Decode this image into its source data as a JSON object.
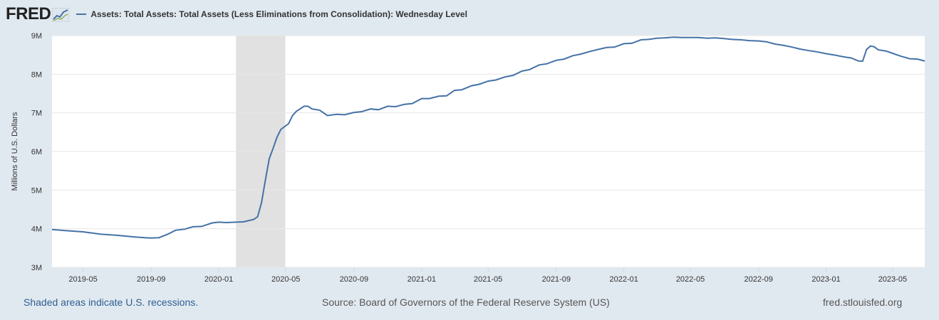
{
  "header": {
    "logo_text": "FRED",
    "legend_label": "Assets: Total Assets: Total Assets (Less Eliminations from Consolidation): Wednesday Level"
  },
  "footer": {
    "recession_note": "Shaded areas indicate U.S. recessions.",
    "source": "Source: Board of Governors of the Federal Reserve System (US)",
    "url": "fred.stlouisfed.org"
  },
  "colors": {
    "line": "#4572a7",
    "recession": "#e1e1e1",
    "background": "#e1e9f0",
    "plot": "#ffffff",
    "grid": "#e6e6e6"
  },
  "chart_data": {
    "type": "line",
    "title": "",
    "xlabel": "",
    "ylabel": "Millions of U.S. Dollars",
    "x_range": [
      "2019-03-06",
      "2023-06-28"
    ],
    "ylim": [
      3000000,
      9000000
    ],
    "grid": true,
    "legend_position": "top-left",
    "y_ticks": [
      {
        "value": 3000000,
        "label": "3M"
      },
      {
        "value": 4000000,
        "label": "4M"
      },
      {
        "value": 5000000,
        "label": "5M"
      },
      {
        "value": 6000000,
        "label": "6M"
      },
      {
        "value": 7000000,
        "label": "7M"
      },
      {
        "value": 8000000,
        "label": "8M"
      },
      {
        "value": 9000000,
        "label": "9M"
      }
    ],
    "x_ticks": [
      {
        "date": "2019-05-01",
        "label": "2019-05"
      },
      {
        "date": "2019-09-01",
        "label": "2019-09"
      },
      {
        "date": "2020-01-01",
        "label": "2020-01"
      },
      {
        "date": "2020-05-01",
        "label": "2020-05"
      },
      {
        "date": "2020-09-01",
        "label": "2020-09"
      },
      {
        "date": "2021-01-01",
        "label": "2021-01"
      },
      {
        "date": "2021-05-01",
        "label": "2021-05"
      },
      {
        "date": "2021-09-01",
        "label": "2021-09"
      },
      {
        "date": "2022-01-01",
        "label": "2022-01"
      },
      {
        "date": "2022-05-01",
        "label": "2022-05"
      },
      {
        "date": "2022-09-01",
        "label": "2022-09"
      },
      {
        "date": "2023-01-01",
        "label": "2023-01"
      },
      {
        "date": "2023-05-01",
        "label": "2023-05"
      }
    ],
    "recessions": [
      {
        "start": "2020-02-01",
        "end": "2020-04-30"
      }
    ],
    "series": [
      {
        "name": "Assets: Total Assets: Total Assets (Less Eliminations from Consolidation): Wednesday Level",
        "points": [
          [
            "2019-03-06",
            3980000
          ],
          [
            "2019-04-01",
            3950000
          ],
          [
            "2019-05-01",
            3920000
          ],
          [
            "2019-06-01",
            3860000
          ],
          [
            "2019-07-01",
            3830000
          ],
          [
            "2019-08-01",
            3790000
          ],
          [
            "2019-08-20",
            3770000
          ],
          [
            "2019-09-01",
            3760000
          ],
          [
            "2019-09-15",
            3770000
          ],
          [
            "2019-10-01",
            3860000
          ],
          [
            "2019-10-15",
            3960000
          ],
          [
            "2019-11-01",
            3990000
          ],
          [
            "2019-11-15",
            4050000
          ],
          [
            "2019-12-01",
            4060000
          ],
          [
            "2019-12-20",
            4150000
          ],
          [
            "2020-01-01",
            4170000
          ],
          [
            "2020-01-15",
            4160000
          ],
          [
            "2020-02-01",
            4170000
          ],
          [
            "2020-02-15",
            4180000
          ],
          [
            "2020-03-04",
            4240000
          ],
          [
            "2020-03-11",
            4310000
          ],
          [
            "2020-03-18",
            4670000
          ],
          [
            "2020-03-25",
            5250000
          ],
          [
            "2020-04-01",
            5810000
          ],
          [
            "2020-04-08",
            6080000
          ],
          [
            "2020-04-15",
            6370000
          ],
          [
            "2020-04-22",
            6570000
          ],
          [
            "2020-05-06",
            6720000
          ],
          [
            "2020-05-13",
            6930000
          ],
          [
            "2020-05-20",
            7040000
          ],
          [
            "2020-06-03",
            7170000
          ],
          [
            "2020-06-10",
            7170000
          ],
          [
            "2020-06-17",
            7100000
          ],
          [
            "2020-07-01",
            7070000
          ],
          [
            "2020-07-15",
            6930000
          ],
          [
            "2020-08-01",
            6960000
          ],
          [
            "2020-08-15",
            6950000
          ],
          [
            "2020-09-01",
            7010000
          ],
          [
            "2020-09-15",
            7030000
          ],
          [
            "2020-10-01",
            7100000
          ],
          [
            "2020-10-15",
            7080000
          ],
          [
            "2020-11-01",
            7170000
          ],
          [
            "2020-11-15",
            7160000
          ],
          [
            "2020-12-01",
            7220000
          ],
          [
            "2020-12-15",
            7240000
          ],
          [
            "2021-01-01",
            7370000
          ],
          [
            "2021-01-15",
            7370000
          ],
          [
            "2021-02-01",
            7430000
          ],
          [
            "2021-02-15",
            7440000
          ],
          [
            "2021-03-01",
            7580000
          ],
          [
            "2021-03-15",
            7600000
          ],
          [
            "2021-04-01",
            7700000
          ],
          [
            "2021-04-15",
            7740000
          ],
          [
            "2021-05-01",
            7820000
          ],
          [
            "2021-05-15",
            7850000
          ],
          [
            "2021-06-01",
            7930000
          ],
          [
            "2021-06-15",
            7970000
          ],
          [
            "2021-07-01",
            8080000
          ],
          [
            "2021-07-15",
            8120000
          ],
          [
            "2021-08-01",
            8240000
          ],
          [
            "2021-08-15",
            8270000
          ],
          [
            "2021-09-01",
            8360000
          ],
          [
            "2021-09-15",
            8390000
          ],
          [
            "2021-10-01",
            8480000
          ],
          [
            "2021-10-15",
            8520000
          ],
          [
            "2021-11-01",
            8590000
          ],
          [
            "2021-11-15",
            8640000
          ],
          [
            "2021-12-01",
            8690000
          ],
          [
            "2021-12-15",
            8700000
          ],
          [
            "2022-01-01",
            8790000
          ],
          [
            "2022-01-15",
            8800000
          ],
          [
            "2022-02-01",
            8890000
          ],
          [
            "2022-02-15",
            8900000
          ],
          [
            "2022-03-01",
            8930000
          ],
          [
            "2022-03-15",
            8940000
          ],
          [
            "2022-04-01",
            8960000
          ],
          [
            "2022-04-15",
            8950000
          ],
          [
            "2022-05-01",
            8950000
          ],
          [
            "2022-05-15",
            8950000
          ],
          [
            "2022-06-01",
            8930000
          ],
          [
            "2022-06-15",
            8940000
          ],
          [
            "2022-07-01",
            8920000
          ],
          [
            "2022-07-15",
            8900000
          ],
          [
            "2022-08-01",
            8890000
          ],
          [
            "2022-08-15",
            8870000
          ],
          [
            "2022-09-01",
            8860000
          ],
          [
            "2022-09-15",
            8840000
          ],
          [
            "2022-10-01",
            8780000
          ],
          [
            "2022-10-15",
            8750000
          ],
          [
            "2022-11-01",
            8700000
          ],
          [
            "2022-11-15",
            8650000
          ],
          [
            "2022-12-01",
            8610000
          ],
          [
            "2022-12-15",
            8580000
          ],
          [
            "2023-01-01",
            8530000
          ],
          [
            "2023-01-15",
            8500000
          ],
          [
            "2023-02-01",
            8450000
          ],
          [
            "2023-02-15",
            8420000
          ],
          [
            "2023-03-01",
            8340000
          ],
          [
            "2023-03-08",
            8340000
          ],
          [
            "2023-03-15",
            8640000
          ],
          [
            "2023-03-22",
            8730000
          ],
          [
            "2023-03-29",
            8710000
          ],
          [
            "2023-04-05",
            8630000
          ],
          [
            "2023-04-19",
            8600000
          ],
          [
            "2023-05-01",
            8540000
          ],
          [
            "2023-05-15",
            8470000
          ],
          [
            "2023-06-01",
            8400000
          ],
          [
            "2023-06-15",
            8390000
          ],
          [
            "2023-06-28",
            8340000
          ]
        ]
      }
    ]
  }
}
